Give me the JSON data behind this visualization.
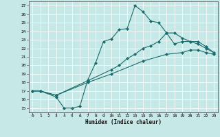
{
  "xlabel": "Humidex (Indice chaleur)",
  "xlim": [
    -0.5,
    23.5
  ],
  "ylim": [
    14.5,
    27.5
  ],
  "xticks": [
    0,
    1,
    2,
    3,
    4,
    5,
    6,
    7,
    8,
    9,
    10,
    11,
    12,
    13,
    14,
    15,
    16,
    17,
    18,
    19,
    20,
    21,
    22,
    23
  ],
  "yticks": [
    15,
    16,
    17,
    18,
    19,
    20,
    21,
    22,
    23,
    24,
    25,
    26,
    27
  ],
  "bg_color": "#c6e8e6",
  "line_color": "#1a6b6b",
  "line1_x": [
    0,
    1,
    3,
    4,
    5,
    6,
    7,
    8,
    9,
    10,
    11,
    12,
    13,
    14,
    15,
    16,
    17,
    18,
    19,
    20,
    21,
    22,
    23
  ],
  "line1_y": [
    17.0,
    17.0,
    16.3,
    15.0,
    15.0,
    15.2,
    18.3,
    20.3,
    22.8,
    23.1,
    24.2,
    24.3,
    27.0,
    26.3,
    25.2,
    25.0,
    23.8,
    22.5,
    22.8,
    22.8,
    22.8,
    22.2,
    21.5
  ],
  "line2_x": [
    0,
    1,
    3,
    7,
    10,
    11,
    12,
    13,
    14,
    15,
    16,
    17,
    18,
    19,
    20,
    21,
    22,
    23
  ],
  "line2_y": [
    17.0,
    17.0,
    16.5,
    18.2,
    19.5,
    20.0,
    20.8,
    21.3,
    22.0,
    22.3,
    22.8,
    23.8,
    23.8,
    23.2,
    22.8,
    22.5,
    22.0,
    21.5
  ],
  "line3_x": [
    0,
    1,
    3,
    7,
    10,
    14,
    17,
    19,
    20,
    21,
    22,
    23
  ],
  "line3_y": [
    17.0,
    17.0,
    16.5,
    18.0,
    19.0,
    20.5,
    21.3,
    21.5,
    21.8,
    21.8,
    21.5,
    21.3
  ]
}
